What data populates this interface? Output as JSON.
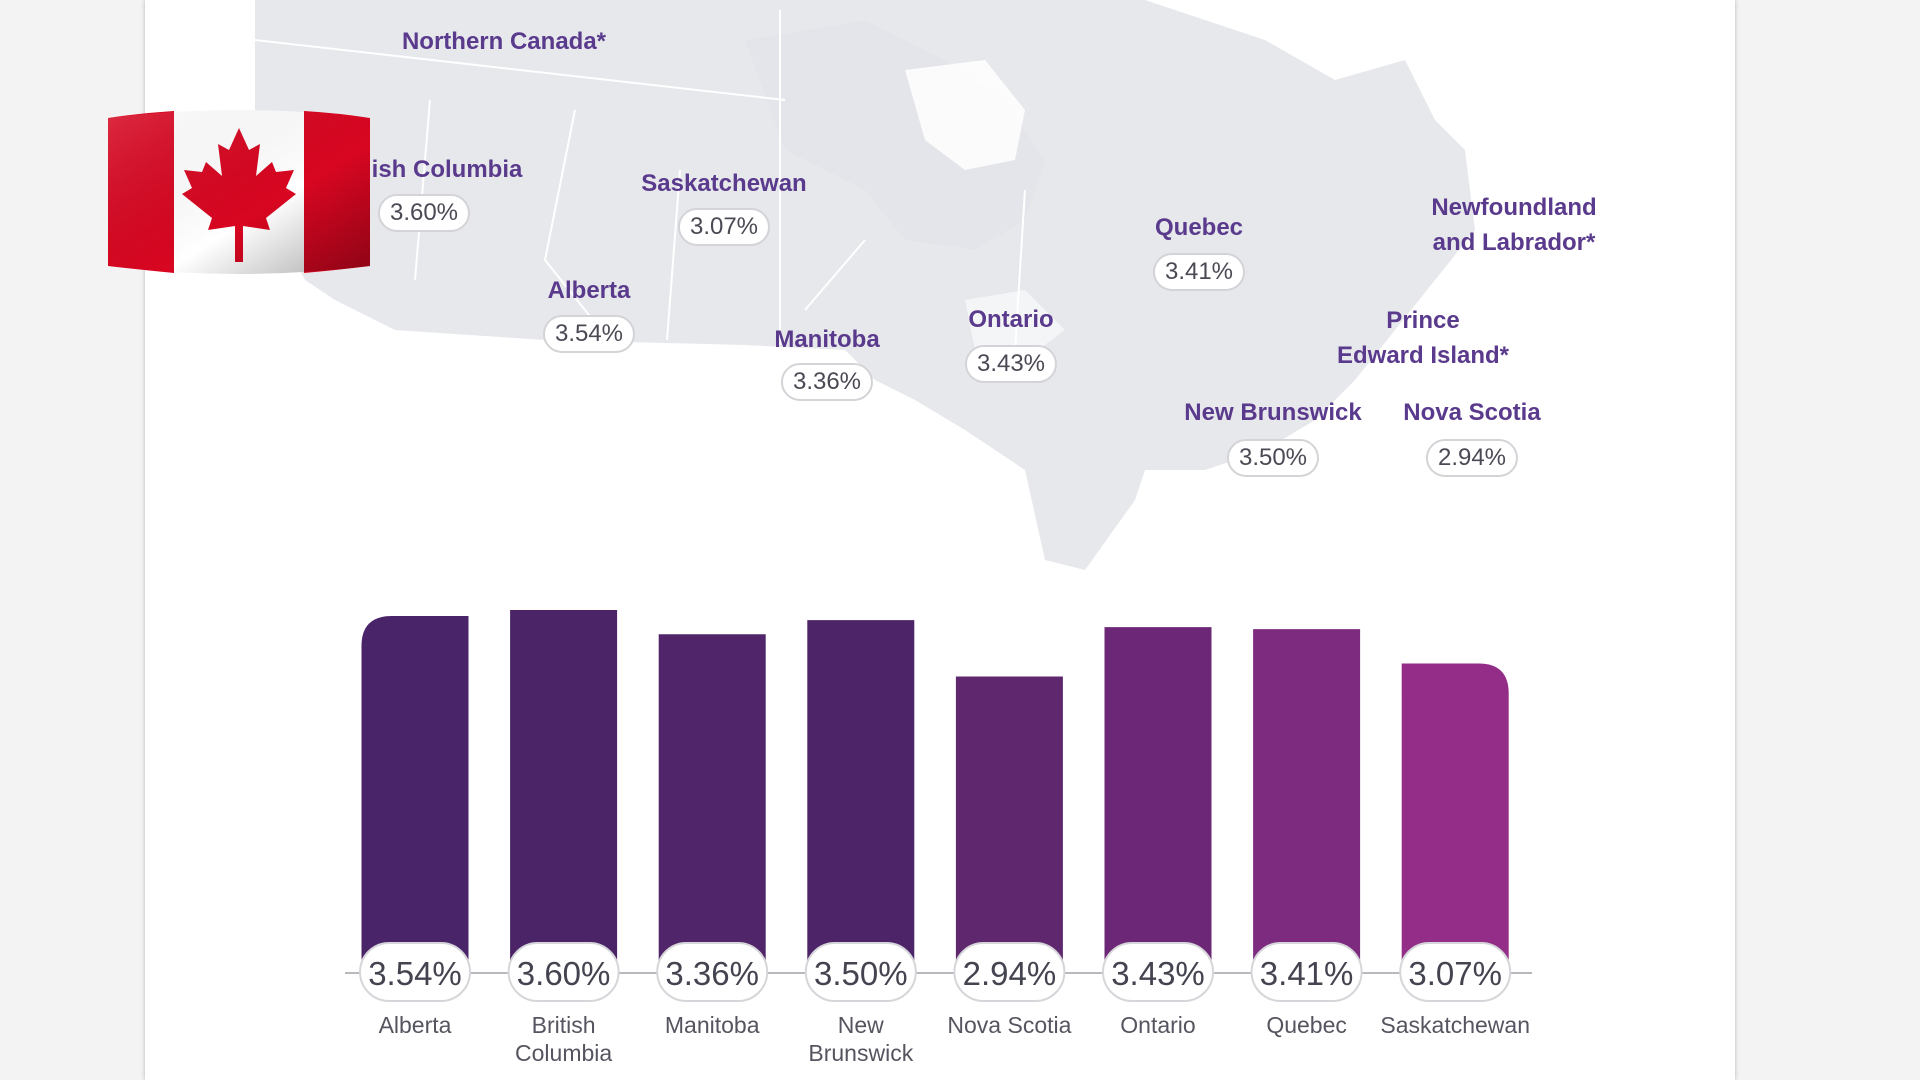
{
  "map": {
    "labels": [
      {
        "id": "northern-canada",
        "text": "Northern Canada*"
      },
      {
        "id": "british-columbia",
        "text": "ish Columbia",
        "value": "3.60%"
      },
      {
        "id": "saskatchewan",
        "text": "Saskatchewan",
        "value": "3.07%"
      },
      {
        "id": "alberta",
        "text": "Alberta",
        "value": "3.54%"
      },
      {
        "id": "manitoba",
        "text": "Manitoba",
        "value": "3.36%"
      },
      {
        "id": "ontario",
        "text": "Ontario",
        "value": "3.43%"
      },
      {
        "id": "quebec",
        "text": "Quebec",
        "value": "3.41%"
      },
      {
        "id": "newfoundland",
        "text": "Newfoundland\nand Labrador*"
      },
      {
        "id": "pei",
        "text": "Prince\nEdward Island*"
      },
      {
        "id": "new-brunswick",
        "text": "New Brunswick",
        "value": "3.50%"
      },
      {
        "id": "nova-scotia",
        "text": "Nova Scotia",
        "value": "2.94%"
      }
    ]
  },
  "flag": {
    "name": "canada-flag-icon",
    "red": "#d80621",
    "white": "#ffffff"
  },
  "chart_data": {
    "type": "bar",
    "categories": [
      "Alberta",
      "British\nColumbia",
      "Manitoba",
      "New\nBrunswick",
      "Nova Scotia",
      "Ontario",
      "Quebec",
      "Saskatchewan"
    ],
    "values": [
      3.54,
      3.6,
      3.36,
      3.5,
      2.94,
      3.43,
      3.41,
      3.07
    ],
    "value_labels": [
      "3.54%",
      "3.60%",
      "3.36%",
      "3.50%",
      "2.94%",
      "3.43%",
      "3.41%",
      "3.07%"
    ],
    "ylim": [
      0,
      3.6
    ],
    "colors": [
      "#4a2469",
      "#4b2468",
      "#502569",
      "#4d2468",
      "#5e276e",
      "#6c2876",
      "#7d2b7f",
      "#932d87"
    ],
    "title": "",
    "xlabel": "",
    "ylabel": ""
  }
}
